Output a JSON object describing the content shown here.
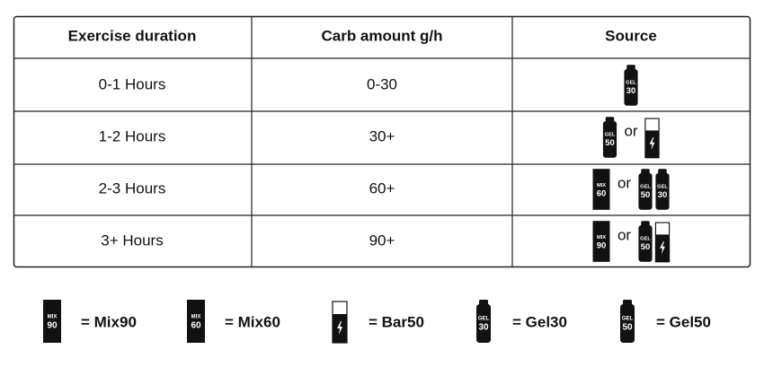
{
  "table": {
    "headers": [
      "Exercise duration",
      "Carb amount g/h",
      "Source"
    ],
    "rows": [
      {
        "duration": "0-1 Hours",
        "carbs": "0-30",
        "source": {
          "options": [
            [
              {
                "kind": "gel",
                "top": "GEL",
                "num": "30"
              }
            ]
          ]
        }
      },
      {
        "duration": "1-2 Hours",
        "carbs": "30+",
        "source": {
          "options": [
            [
              {
                "kind": "gel",
                "top": "GEL",
                "num": "50"
              }
            ],
            [
              {
                "kind": "bar"
              }
            ]
          ],
          "separator": "or"
        }
      },
      {
        "duration": "2-3 Hours",
        "carbs": "60+",
        "source": {
          "options": [
            [
              {
                "kind": "mix",
                "top": "MIX",
                "num": "60"
              }
            ],
            [
              {
                "kind": "gel",
                "top": "GEL",
                "num": "50"
              },
              {
                "kind": "gel",
                "top": "GEL",
                "num": "30"
              }
            ]
          ],
          "separator": "or"
        }
      },
      {
        "duration": "3+ Hours",
        "carbs": "90+",
        "source": {
          "options": [
            [
              {
                "kind": "mix",
                "top": "MIX",
                "num": "90"
              }
            ],
            [
              {
                "kind": "gel",
                "top": "GEL",
                "num": "50"
              },
              {
                "kind": "bar"
              }
            ]
          ],
          "separator": "or"
        }
      }
    ]
  },
  "legend": [
    {
      "icon": {
        "kind": "mix",
        "top": "MIX",
        "num": "90"
      },
      "label": "= Mix90"
    },
    {
      "icon": {
        "kind": "mix",
        "top": "MIX",
        "num": "60"
      },
      "label": "= Mix60"
    },
    {
      "icon": {
        "kind": "bar"
      },
      "label": "= Bar50"
    },
    {
      "icon": {
        "kind": "gel",
        "top": "GEL",
        "num": "30"
      },
      "label": "= Gel30"
    },
    {
      "icon": {
        "kind": "gel",
        "top": "GEL",
        "num": "50"
      },
      "label": "= Gel50"
    }
  ]
}
